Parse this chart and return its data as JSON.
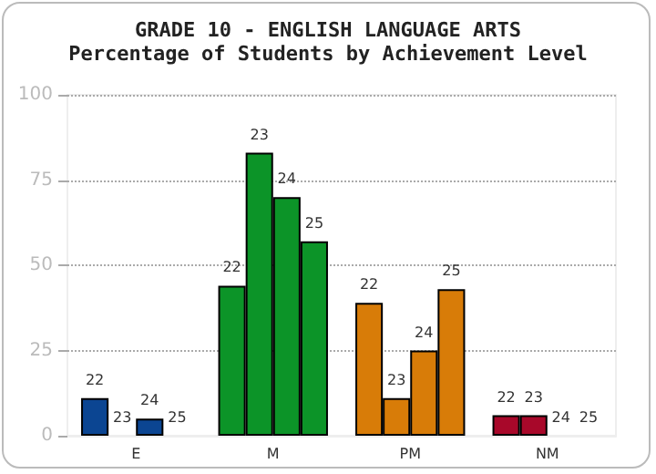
{
  "chart_data": {
    "type": "bar",
    "title": "GRADE 10 - ENGLISH LANGUAGE ARTS",
    "subtitle": "Percentage of Students by Achievement Level",
    "categories": [
      "E",
      "M",
      "PM",
      "NM"
    ],
    "series": [
      {
        "name": "22",
        "colors": [
          "#0b4592",
          "#0c9428",
          "#d87c08",
          "#a8082a"
        ],
        "values": [
          11,
          44,
          39,
          6
        ]
      },
      {
        "name": "23",
        "colors": [
          "#0b4592",
          "#0c9428",
          "#d87c08",
          "#a8082a"
        ],
        "values": [
          0,
          83,
          11,
          6
        ]
      },
      {
        "name": "24",
        "colors": [
          "#0b4592",
          "#0c9428",
          "#d87c08",
          "#a8082a"
        ],
        "values": [
          5,
          70,
          25,
          0
        ]
      },
      {
        "name": "25",
        "colors": [
          "#0b4592",
          "#0c9428",
          "#d87c08",
          "#a8082a"
        ],
        "values": [
          0,
          57,
          43,
          0
        ]
      }
    ],
    "ylim": [
      0,
      100
    ],
    "yticks": [
      0,
      25,
      50,
      75,
      100
    ],
    "grid": "y",
    "legend": false
  }
}
